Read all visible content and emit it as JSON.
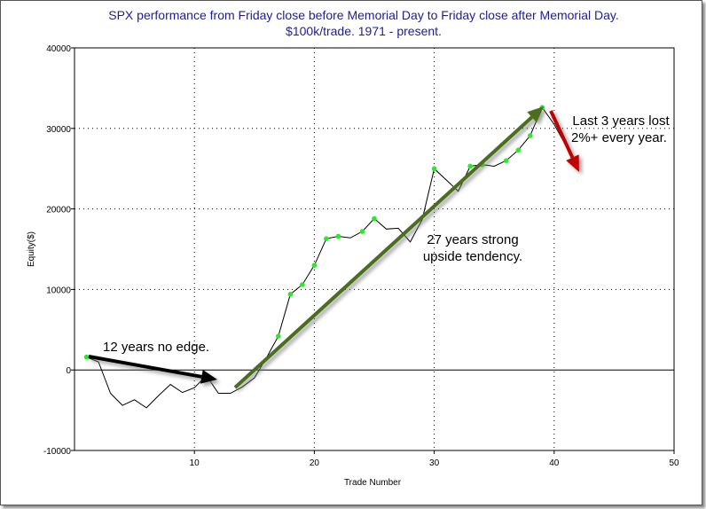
{
  "chart_data": {
    "type": "line",
    "title": [
      "SPX performance from Friday close before Memorial Day to Friday close after Memorial Day.",
      "$100k/trade. 1971 - present."
    ],
    "xlabel": "Trade Number",
    "ylabel": "Equity($)",
    "xlim": [
      0,
      50
    ],
    "ylim": [
      -10000,
      40000
    ],
    "xticks": [
      10,
      20,
      30,
      40,
      50
    ],
    "yticks": [
      -10000,
      0,
      10000,
      20000,
      30000,
      40000
    ],
    "grid": true,
    "x": [
      1,
      2,
      3,
      4,
      5,
      6,
      7,
      8,
      9,
      10,
      11,
      12,
      13,
      14,
      15,
      16,
      17,
      18,
      19,
      20,
      21,
      22,
      23,
      24,
      25,
      26,
      27,
      28,
      29,
      30,
      31,
      32,
      33,
      34,
      35,
      36,
      37,
      38,
      39,
      40,
      41,
      42
    ],
    "values": [
      1600,
      1000,
      -2900,
      -4400,
      -3700,
      -4700,
      -3200,
      -1800,
      -2800,
      -2200,
      -700,
      -2900,
      -2900,
      -2100,
      -1000,
      1500,
      4200,
      9400,
      10600,
      13000,
      16300,
      16600,
      16400,
      17200,
      18800,
      17500,
      17600,
      15900,
      18700,
      25000,
      23600,
      22200,
      25300,
      25500,
      25300,
      26000,
      27300,
      29100,
      32600,
      30500,
      27800,
      25200
    ],
    "new_high_markers": [
      1,
      17,
      18,
      19,
      20,
      21,
      22,
      24,
      25,
      30,
      33,
      34,
      36,
      37,
      38,
      39
    ],
    "annotations": [
      {
        "text": "12 years no edge.",
        "arrow_color": "#000000",
        "from_trade": 1,
        "to_trade": 12
      },
      {
        "text": [
          "27 years strong",
          "upside tendency."
        ],
        "arrow_color": "#4a6e1e",
        "from_trade": 13,
        "to_trade": 39
      },
      {
        "text": [
          "Last 3 years lost",
          "2%+ every year."
        ],
        "arrow_color": "#c00000",
        "from_trade": 40,
        "to_trade": 42
      }
    ],
    "colors": {
      "line": "#000000",
      "marker": "#22ee22",
      "title": "#1c1ca0"
    }
  }
}
